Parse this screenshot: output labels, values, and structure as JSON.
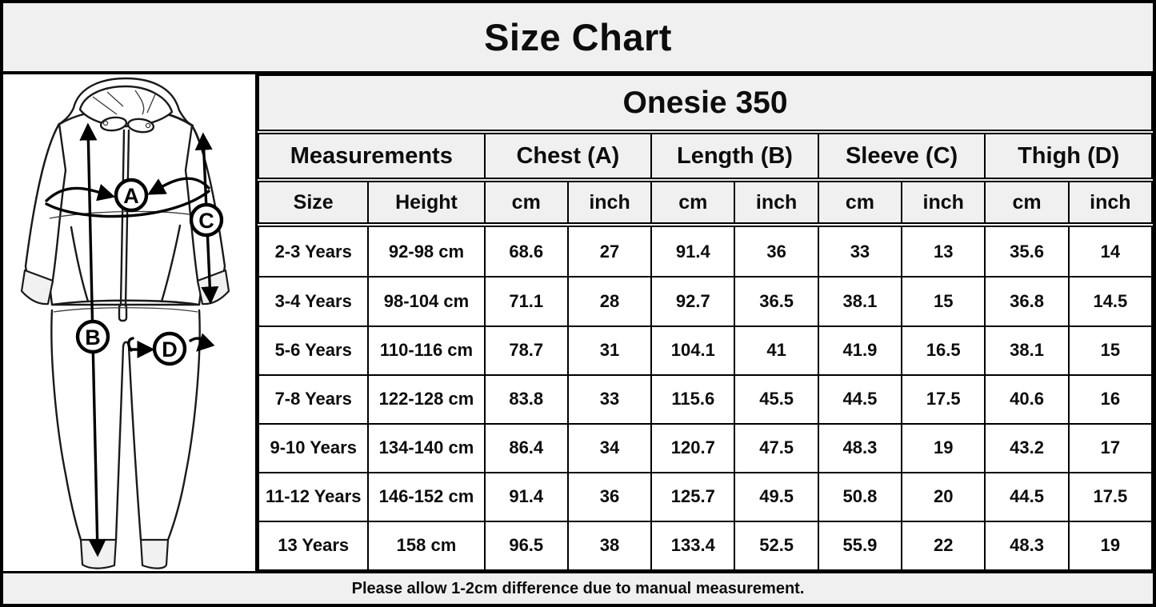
{
  "title": "Size Chart",
  "diagram": {
    "description": "hand-drawn hooded onesie with measurement arrows",
    "labels": {
      "chest": "A",
      "length": "B",
      "sleeve": "C",
      "thigh": "D"
    }
  },
  "table": {
    "product": "Onesie 350",
    "groups": [
      {
        "label": "Measurements",
        "span": 2
      },
      {
        "label": "Chest (A)",
        "span": 2
      },
      {
        "label": "Length (B)",
        "span": 2
      },
      {
        "label": "Sleeve (C)",
        "span": 2
      },
      {
        "label": "Thigh (D)",
        "span": 2
      }
    ],
    "columns": [
      "Size",
      "Height",
      "cm",
      "inch",
      "cm",
      "inch",
      "cm",
      "inch",
      "cm",
      "inch"
    ],
    "rows": [
      [
        "2-3 Years",
        "92-98 cm",
        "68.6",
        "27",
        "91.4",
        "36",
        "33",
        "13",
        "35.6",
        "14"
      ],
      [
        "3-4 Years",
        "98-104 cm",
        "71.1",
        "28",
        "92.7",
        "36.5",
        "38.1",
        "15",
        "36.8",
        "14.5"
      ],
      [
        "5-6 Years",
        "110-116 cm",
        "78.7",
        "31",
        "104.1",
        "41",
        "41.9",
        "16.5",
        "38.1",
        "15"
      ],
      [
        "7-8 Years",
        "122-128 cm",
        "83.8",
        "33",
        "115.6",
        "45.5",
        "44.5",
        "17.5",
        "40.6",
        "16"
      ],
      [
        "9-10 Years",
        "134-140 cm",
        "86.4",
        "34",
        "120.7",
        "47.5",
        "48.3",
        "19",
        "43.2",
        "17"
      ],
      [
        "11-12 Years",
        "146-152 cm",
        "91.4",
        "36",
        "125.7",
        "49.5",
        "50.8",
        "20",
        "44.5",
        "17.5"
      ],
      [
        "13 Years",
        "158 cm",
        "96.5",
        "38",
        "133.4",
        "52.5",
        "55.9",
        "22",
        "48.3",
        "19"
      ]
    ]
  },
  "footer_note": "Please allow 1-2cm difference due to manual measurement.",
  "colors": {
    "header_bg": "#f0f0f0",
    "cell_bg": "#ffffff",
    "border": "#000000",
    "text": "#0d0d0d"
  }
}
